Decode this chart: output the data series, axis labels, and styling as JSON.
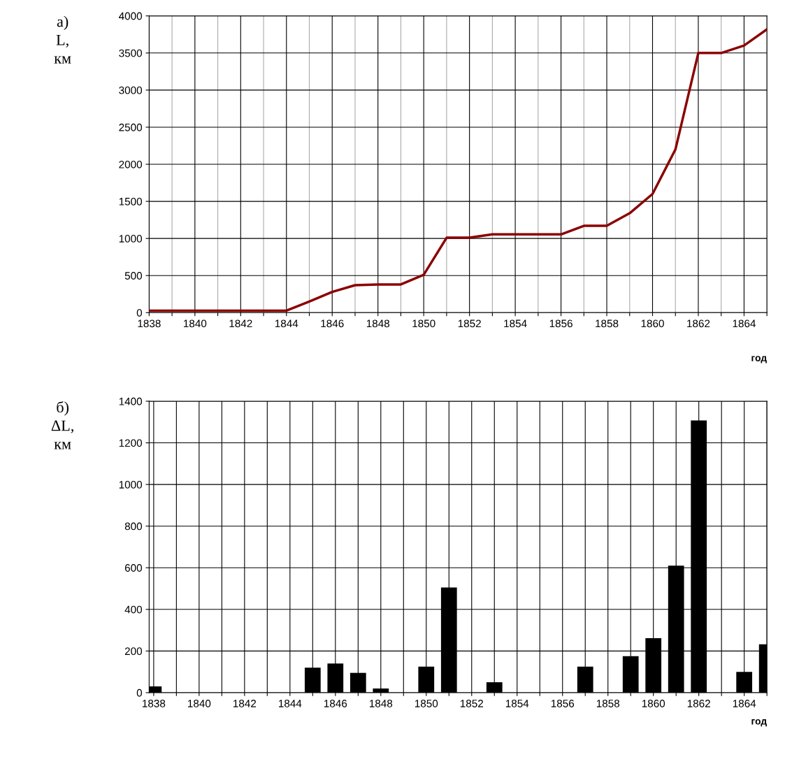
{
  "chart_data": [
    {
      "type": "line",
      "ylabel": "а)\nL,\nкм",
      "xlabel": "год",
      "x": [
        1838,
        1839,
        1840,
        1841,
        1842,
        1843,
        1844,
        1845,
        1846,
        1847,
        1848,
        1849,
        1850,
        1851,
        1852,
        1853,
        1854,
        1855,
        1856,
        1857,
        1858,
        1859,
        1860,
        1861,
        1862,
        1863,
        1864,
        1865
      ],
      "series": [
        {
          "color": "#8b0000",
          "values": [
            27,
            27,
            27,
            27,
            27,
            27,
            27,
            150,
            280,
            370,
            380,
            380,
            510,
            1010,
            1010,
            1055,
            1055,
            1055,
            1055,
            1170,
            1170,
            1340,
            1600,
            2200,
            3500,
            3500,
            3600,
            3820
          ]
        }
      ],
      "xlim": [
        1838,
        1865
      ],
      "ylim": [
        0,
        4000
      ],
      "xticks": [
        1838,
        {
          "value": 1839,
          "label": null
        },
        1840,
        {
          "value": 1841,
          "label": null
        },
        1842,
        {
          "value": 1843,
          "label": null
        },
        1844,
        {
          "value": 1845,
          "label": null
        },
        1846,
        {
          "value": 1847,
          "label": null
        },
        1848,
        {
          "value": 1849,
          "label": null
        },
        1850,
        {
          "value": 1851,
          "label": null
        },
        1852,
        {
          "value": 1853,
          "label": null
        },
        1854,
        {
          "value": 1855,
          "label": null
        },
        1856,
        {
          "value": 1857,
          "label": null
        },
        1858,
        {
          "value": 1859,
          "label": null
        },
        1860,
        {
          "value": 1861,
          "label": null
        },
        1862,
        {
          "value": 1863,
          "label": null
        },
        1864,
        {
          "value": 1865,
          "label": null
        }
      ],
      "yticks": [
        0,
        500,
        1000,
        1500,
        2000,
        2500,
        3000,
        3500,
        4000
      ],
      "grid": true,
      "marker": "none",
      "line_style": "solid"
    },
    {
      "type": "bar",
      "ylabel": "б)\nΔL,\nкм",
      "xlabel": "год",
      "x": [
        1838,
        1845,
        1846,
        1847,
        1848,
        1850,
        1851,
        1853,
        1857,
        1859,
        1860,
        1861,
        1862,
        1864,
        1865
      ],
      "series": [
        {
          "color": "#000000",
          "values": [
            30,
            120,
            140,
            95,
            20,
            125,
            505,
            50,
            125,
            175,
            262,
            610,
            1308,
            100,
            232
          ]
        }
      ],
      "xlim": [
        1837.8,
        1865
      ],
      "ylim": [
        0,
        1400
      ],
      "xticks": [
        1838,
        {
          "value": 1839,
          "label": null
        },
        1840,
        {
          "value": 1841,
          "label": null
        },
        1842,
        {
          "value": 1843,
          "label": null
        },
        1844,
        {
          "value": 1845,
          "label": null
        },
        1846,
        {
          "value": 1847,
          "label": null
        },
        1848,
        {
          "value": 1849,
          "label": null
        },
        1850,
        {
          "value": 1851,
          "label": null
        },
        1852,
        {
          "value": 1853,
          "label": null
        },
        1854,
        {
          "value": 1855,
          "label": null
        },
        1856,
        {
          "value": 1857,
          "label": null
        },
        1858,
        {
          "value": 1859,
          "label": null
        },
        1860,
        {
          "value": 1861,
          "label": null
        },
        1862,
        {
          "value": 1863,
          "label": null
        },
        1864,
        {
          "value": 1865,
          "label": null
        }
      ],
      "yticks": [
        0,
        200,
        400,
        600,
        800,
        1000,
        1200,
        1400
      ],
      "grid": true
    }
  ]
}
